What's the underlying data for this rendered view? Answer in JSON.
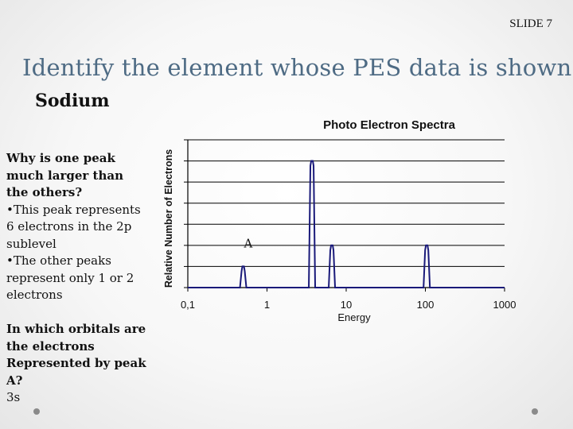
{
  "slide": {
    "number_label": "SLIDE 7",
    "title": "Identify the element whose PES data is shown",
    "answer": "Sodium"
  },
  "left_text": {
    "question1": "Why is one peak much larger than the others?",
    "bullets": [
      "•This peak represents 6 electrons in the 2p sublevel",
      "•The other peaks represent only 1 or 2 electrons"
    ],
    "question2": "In which orbitals are the electrons Represented by peak A?",
    "answer2": "3s"
  },
  "colors": {
    "title": "#4e6b84",
    "series": "#1a1a7a",
    "axis": "#000000"
  },
  "chart_data": {
    "type": "line",
    "title": "Photo Electron Spectra",
    "xlabel": "Energy",
    "ylabel": "Relative Number of Electrons",
    "x_scale": "log",
    "xlim": [
      0.1,
      1000
    ],
    "x_tick_labels": [
      "0,1",
      "1",
      "10",
      "100",
      "1000"
    ],
    "x_tick_values": [
      0.1,
      1,
      10,
      100,
      1000
    ],
    "ylim": [
      0,
      7
    ],
    "y_ticks": [
      0,
      1,
      2,
      3,
      4,
      5,
      6,
      7
    ],
    "y_tick_labels_visible": false,
    "grid": "horizontal",
    "peaks": [
      {
        "energy": 0.5,
        "height": 1
      },
      {
        "energy": 3.7,
        "height": 6
      },
      {
        "energy": 6.6,
        "height": 2
      },
      {
        "energy": 104,
        "height": 2
      }
    ],
    "annotations": [
      {
        "text": "A",
        "energy": 0.5
      }
    ]
  }
}
